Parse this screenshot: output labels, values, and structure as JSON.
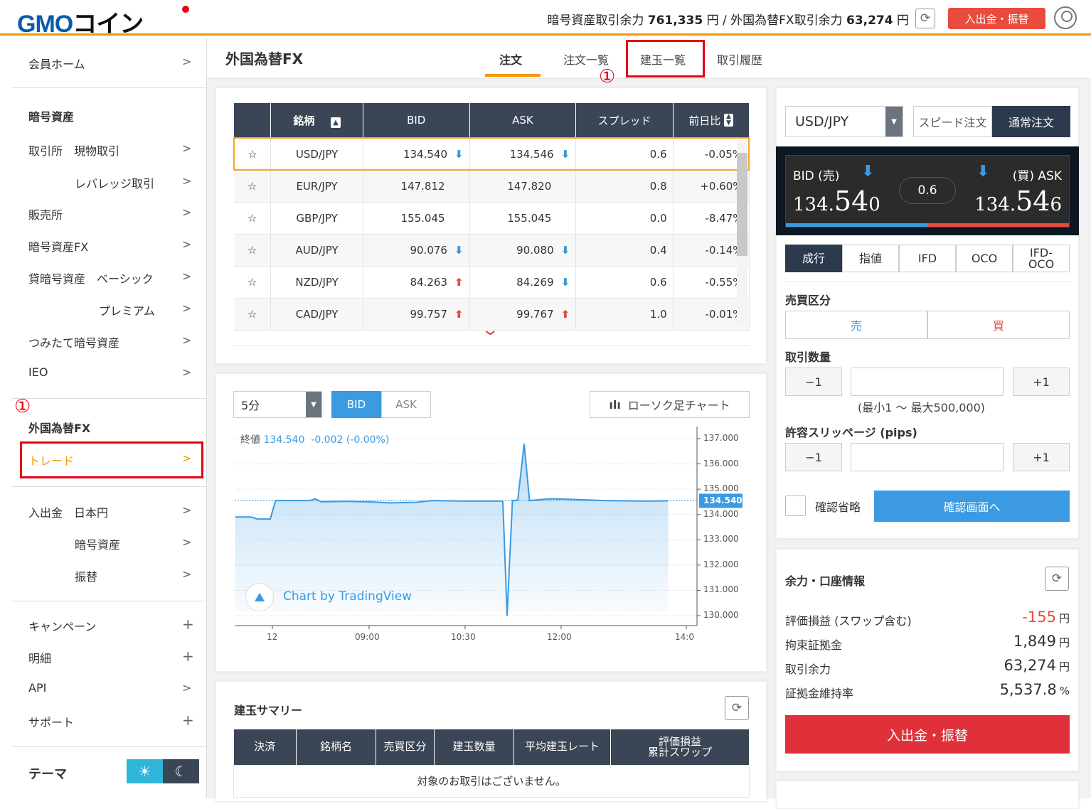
{
  "header": {
    "logo": "GMOコイン",
    "crypto_balance_label": "暗号資産取引余力",
    "crypto_balance": "761,335",
    "fx_balance_label": "外国為替FX取引余力",
    "fx_balance": "63,274",
    "currency": "円",
    "separator": "/",
    "deposit_button": "入出金・振替"
  },
  "sidebar": {
    "items": [
      {
        "label": "会員ホーム",
        "icon": ">"
      },
      {
        "label": "暗号資産",
        "heading": true
      },
      {
        "label": "取引所　現物取引",
        "icon": ">"
      },
      {
        "label": "レバレッジ取引",
        "icon": ">"
      },
      {
        "label": "販売所",
        "icon": ">"
      },
      {
        "label": "暗号資産FX",
        "icon": ">"
      },
      {
        "label": "貸暗号資産　ベーシック",
        "icon": ">"
      },
      {
        "label": "プレミアム",
        "icon": ">"
      },
      {
        "label": "つみたて暗号資産",
        "icon": ">"
      },
      {
        "label": "IEO",
        "icon": ">"
      },
      {
        "label": "外国為替FX",
        "heading": true
      },
      {
        "label": "トレード",
        "icon": ">",
        "active": true
      },
      {
        "label": "入出金　日本円",
        "icon": ">"
      },
      {
        "label": "暗号資産",
        "icon": ">"
      },
      {
        "label": "振替",
        "icon": ">"
      },
      {
        "label": "キャンペーン",
        "icon": "+"
      },
      {
        "label": "明細",
        "icon": "+"
      },
      {
        "label": "API",
        "icon": ">"
      },
      {
        "label": "サポート",
        "icon": "+"
      }
    ],
    "theme_label": "テーマ",
    "annotation": "①"
  },
  "titlebar": {
    "title": "外国為替FX",
    "tabs": [
      "注文",
      "注文一覧",
      "建玉一覧",
      "取引履歴"
    ],
    "active_tab": "注文",
    "annotation": "①"
  },
  "market": {
    "columns": [
      "銘柄",
      "BID",
      "ASK",
      "スプレッド",
      "前日比"
    ],
    "rows": [
      {
        "pair": "USD/JPY",
        "bid": "134.540",
        "bid_dir": "down",
        "ask": "134.546",
        "ask_dir": "down",
        "spread": "0.6",
        "change": "-0.05%"
      },
      {
        "pair": "EUR/JPY",
        "bid": "147.812",
        "bid_dir": "",
        "ask": "147.820",
        "ask_dir": "",
        "spread": "0.8",
        "change": "+0.60%"
      },
      {
        "pair": "GBP/JPY",
        "bid": "155.045",
        "bid_dir": "",
        "ask": "155.045",
        "ask_dir": "",
        "spread": "0.0",
        "change": "-8.47%"
      },
      {
        "pair": "AUD/JPY",
        "bid": "90.076",
        "bid_dir": "down",
        "ask": "90.080",
        "ask_dir": "down",
        "spread": "0.4",
        "change": "-0.14%"
      },
      {
        "pair": "NZD/JPY",
        "bid": "84.263",
        "bid_dir": "up",
        "ask": "84.269",
        "ask_dir": "down",
        "spread": "0.6",
        "change": "-0.55%"
      },
      {
        "pair": "CAD/JPY",
        "bid": "99.757",
        "bid_dir": "up",
        "ask": "99.767",
        "ask_dir": "up",
        "spread": "1.0",
        "change": "-0.01%"
      }
    ]
  },
  "chart": {
    "interval": "5分",
    "bid_label": "BID",
    "ask_label": "ASK",
    "chart_type_button": "ローソク足チャート",
    "close_label": "終値",
    "close_value": "134.540",
    "change": "-0.002 (-0.00%)",
    "watermark": "Chart by TradingView",
    "last_price_tag": "134.540"
  },
  "chart_data": {
    "type": "area",
    "ylim": [
      129.6,
      137.5
    ],
    "yticks": [
      "137.000",
      "136.000",
      "135.000",
      "134.000",
      "133.000",
      "132.000",
      "131.000",
      "130.000"
    ],
    "xticks": [
      "12",
      "09:00",
      "10:30",
      "12:00",
      "14:0"
    ],
    "points": [
      [
        "06:55",
        133.9
      ],
      [
        "07:10",
        133.9
      ],
      [
        "07:16",
        133.82
      ],
      [
        "07:28",
        133.82
      ],
      [
        "07:33",
        134.55
      ],
      [
        "08:05",
        134.55
      ],
      [
        "08:10",
        134.62
      ],
      [
        "08:16",
        134.5
      ],
      [
        "08:40",
        134.52
      ],
      [
        "09:00",
        134.5
      ],
      [
        "09:20",
        134.46
      ],
      [
        "09:45",
        134.48
      ],
      [
        "10:00",
        134.55
      ],
      [
        "10:30",
        134.53
      ],
      [
        "11:06",
        134.53
      ],
      [
        "11:10",
        130.0
      ],
      [
        "11:15",
        134.55
      ],
      [
        "11:20",
        134.57
      ],
      [
        "11:26",
        136.8
      ],
      [
        "11:31",
        134.55
      ],
      [
        "11:50",
        134.62
      ],
      [
        "12:10",
        134.6
      ],
      [
        "12:40",
        134.55
      ],
      [
        "13:20",
        134.53
      ],
      [
        "13:41",
        134.54
      ]
    ]
  },
  "summary": {
    "title": "建玉サマリー",
    "columns": [
      "決済",
      "銘柄名",
      "売買区分",
      "建玉数量",
      "平均建玉レート",
      "評価損益\n累計スワップ"
    ],
    "empty": "対象のお取引はございません。"
  },
  "order": {
    "pair": "USD/JPY",
    "speed_label": "スピード注文",
    "normal_label": "通常注文",
    "bid_label": "BID (売)",
    "ask_label": "(買) ASK",
    "bid_main": "134.",
    "bid_big": "54",
    "bid_small": "0",
    "ask_main": "134.",
    "ask_big": "54",
    "ask_small": "6",
    "spread": "0.6",
    "types": [
      "成行",
      "指値",
      "IFD",
      "OCO",
      "IFD-OCO"
    ],
    "active_type": "成行",
    "side_label": "売買区分",
    "sell": "売",
    "buy": "買",
    "qty_label": "取引数量",
    "minus": "−1",
    "plus": "+1",
    "qty_value": "",
    "qty_hint": "(最小1 〜 最大500,000)",
    "slip_label": "許容スリッページ (pips)",
    "slip_value": "",
    "skip_confirm": "確認省略",
    "confirm_button": "確認画面へ"
  },
  "account": {
    "title": "余力・口座情報",
    "rows": [
      {
        "label": "評価損益 (スワップ含む)",
        "value": "-155",
        "unit": "円",
        "negative": true
      },
      {
        "label": "拘束証拠金",
        "value": "1,849",
        "unit": "円"
      },
      {
        "label": "取引余力",
        "value": "63,274",
        "unit": "円"
      },
      {
        "label": "証拠金維持率",
        "value": "5,537.8",
        "unit": "%"
      }
    ],
    "deposit_button": "入出金・振替"
  },
  "colors": {
    "accent": "#f39800",
    "navy": "#2c3a4d",
    "blue": "#3b9ae1",
    "red": "#e53935",
    "annotation": "#e60012"
  }
}
